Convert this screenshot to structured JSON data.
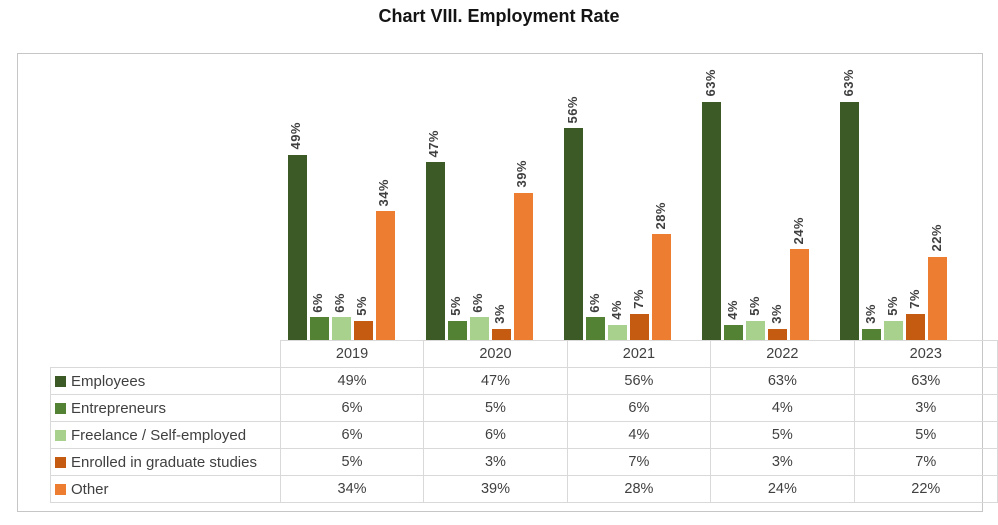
{
  "title": "Chart VIII. Employment Rate",
  "colors": {
    "border": "#d9d9d9",
    "outer_border": "#c6c6c6",
    "text": "#404040",
    "label_text": "#3f3f3f",
    "title_text": "#141414"
  },
  "chart_data": {
    "type": "bar",
    "title": "Chart VIII. Employment Rate",
    "categories": [
      "2019",
      "2020",
      "2021",
      "2022",
      "2023"
    ],
    "series": [
      {
        "name": "Employees",
        "color": "#3c5a25",
        "values": [
          49,
          47,
          56,
          63,
          63
        ]
      },
      {
        "name": "Entrepreneurs",
        "color": "#548235",
        "values": [
          6,
          5,
          6,
          4,
          3
        ]
      },
      {
        "name": "Freelance / Self-employed",
        "color": "#a9d18e",
        "values": [
          6,
          6,
          4,
          5,
          5
        ]
      },
      {
        "name": "Enrolled in graduate studies",
        "color": "#c55a11",
        "values": [
          5,
          3,
          7,
          3,
          7
        ]
      },
      {
        "name": "Other",
        "color": "#ed7d31",
        "values": [
          34,
          39,
          28,
          24,
          22
        ]
      }
    ],
    "value_suffix": "%",
    "data_labels": true,
    "label_rotation": 90,
    "legend_position": "table-left-column",
    "grid": false,
    "ylim": [
      0,
      63
    ]
  }
}
